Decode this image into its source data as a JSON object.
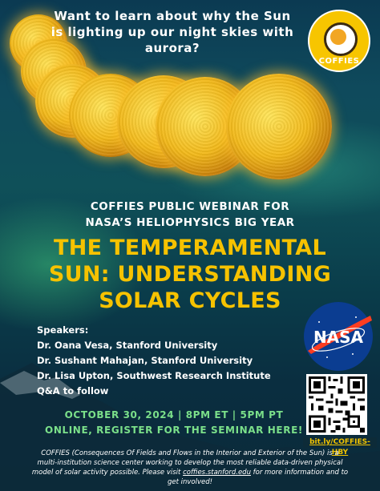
{
  "headline": "Want to learn about why the Sun is lighting up our night skies with aurora?",
  "logo": {
    "name": "COFFIES"
  },
  "event_line1": "COFFIES PUBLIC WEBINAR FOR",
  "event_line2": "NASA’S HELIOPHYSICS BIG YEAR",
  "title_line1": "THE TEMPERAMENTAL",
  "title_line2": "SUN: UNDERSTANDING",
  "title_line3": "SOLAR CYCLES",
  "speakers": {
    "heading": "Speakers:",
    "list": [
      "Dr. Oana Vesa, Stanford University",
      "Dr. Sushant Mahajan, Stanford University",
      "Dr. Lisa Upton, Southwest Research Institute",
      "Q&A to follow"
    ]
  },
  "nasa_logo": "NASA",
  "date_line": "OCTOBER 30, 2024 | 8PM ET  | 5PM PT",
  "register_line": "ONLINE, REGISTER FOR THE SEMINAR HERE!",
  "qr_link": "bit.ly/COFFIES-HBY",
  "footer": {
    "before": "COFFIES (Consequences Of Fields and Flows in the Interior and Exterior of the Sun) is a multi-institution science center working to develop the most reliable data-driven physical model of solar activity possible. Please visit ",
    "link": "coffies.stanford.edu",
    "after": " for more information and to get involved!"
  },
  "colors": {
    "accent_yellow": "#f6c200",
    "accent_green": "#7be08a",
    "background": "#0f4a5c"
  }
}
